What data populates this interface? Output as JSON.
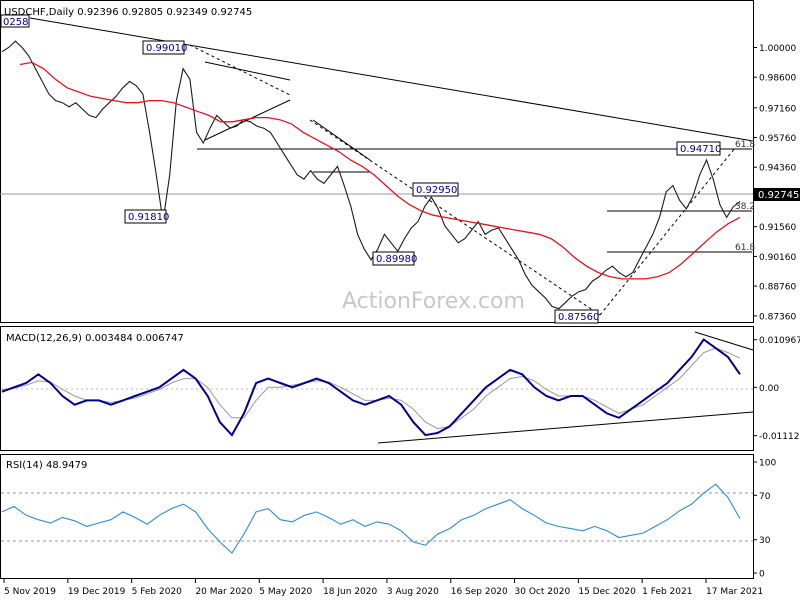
{
  "chart_data": [
    {
      "type": "line",
      "panel": "price",
      "header": "USDCHF,Daily  0.92396 0.92805 0.92349 0.92745",
      "symbol": "USDCHF",
      "timeframe": "Daily",
      "ohlc": {
        "open": 0.92396,
        "high": 0.92805,
        "low": 0.92349,
        "close": 0.92745
      },
      "ylim": [
        0.8726,
        1.0186
      ],
      "y_ticks": [
        "1.00000",
        "0.98600",
        "0.97160",
        "0.95760",
        "0.94360",
        "0.92960",
        "0.91560",
        "0.90160",
        "0.88760",
        "0.87360"
      ],
      "y_tick_values": [
        1.0,
        0.986,
        0.9716,
        0.9576,
        0.9436,
        0.9296,
        0.9156,
        0.9016,
        0.8876,
        0.8736
      ],
      "current_price_label": "0.92745",
      "watermark": "ActionForex.com",
      "series": [
        {
          "name": "close",
          "role": "price",
          "color": "#1a1a1a",
          "values": [
            0.998,
            1.0,
            1.003,
            1.0,
            0.996,
            0.99,
            0.984,
            0.978,
            0.975,
            0.974,
            0.972,
            0.974,
            0.971,
            0.968,
            0.967,
            0.971,
            0.974,
            0.977,
            0.981,
            0.984,
            0.982,
            0.978,
            0.96,
            0.94,
            0.9181,
            0.94,
            0.975,
            0.99,
            0.985,
            0.96,
            0.955,
            0.962,
            0.968,
            0.965,
            0.962,
            0.963,
            0.966,
            0.965,
            0.963,
            0.962,
            0.96,
            0.955,
            0.95,
            0.945,
            0.94,
            0.938,
            0.942,
            0.938,
            0.936,
            0.94,
            0.944,
            0.935,
            0.925,
            0.912,
            0.905,
            0.9,
            0.905,
            0.912,
            0.908,
            0.904,
            0.91,
            0.915,
            0.918,
            0.925,
            0.9295,
            0.924,
            0.916,
            0.912,
            0.908,
            0.91,
            0.914,
            0.918,
            0.912,
            0.914,
            0.915,
            0.91,
            0.905,
            0.9,
            0.893,
            0.888,
            0.885,
            0.882,
            0.878,
            0.877,
            0.88,
            0.883,
            0.885,
            0.886,
            0.89,
            0.892,
            0.895,
            0.897,
            0.894,
            0.892,
            0.894,
            0.9,
            0.906,
            0.912,
            0.92,
            0.932,
            0.935,
            0.928,
            0.924,
            0.93,
            0.94,
            0.947,
            0.938,
            0.926,
            0.92,
            0.925,
            0.9275
          ]
        },
        {
          "name": "SMA",
          "role": "moving-average",
          "color": "#e0141e",
          "values": [
            0.992,
            0.993,
            0.99,
            0.985,
            0.981,
            0.979,
            0.977,
            0.976,
            0.975,
            0.974,
            0.974,
            0.975,
            0.975,
            0.974,
            0.972,
            0.97,
            0.968,
            0.965,
            0.965,
            0.966,
            0.967,
            0.967,
            0.966,
            0.964,
            0.96,
            0.957,
            0.954,
            0.951,
            0.947,
            0.944,
            0.94,
            0.935,
            0.93,
            0.926,
            0.923,
            0.921,
            0.92,
            0.919,
            0.918,
            0.917,
            0.916,
            0.915,
            0.914,
            0.913,
            0.912,
            0.91,
            0.906,
            0.901,
            0.897,
            0.894,
            0.892,
            0.891,
            0.891,
            0.891,
            0.892,
            0.894,
            0.898,
            0.903,
            0.908,
            0.913,
            0.917,
            0.92
          ]
        }
      ],
      "annotations": [
        {
          "label": "0.99010"
        },
        {
          "label": "0.91810"
        },
        {
          "label": "0.89980"
        },
        {
          "label": "0.92950"
        },
        {
          "label": "0.87560"
        },
        {
          "label": "0.94710"
        },
        {
          "label": "61.8"
        },
        {
          "label": "38.2"
        },
        {
          "label": "61.8"
        },
        {
          "label": "0258"
        }
      ],
      "level_lines": [
        0.9471,
        0.9181,
        0.9295,
        0.9015
      ]
    },
    {
      "type": "line",
      "panel": "macd",
      "header": "MACD(12,26,9) 0.003484 0.006747",
      "ylim": [
        -0.0135,
        0.0125
      ],
      "y_ticks": [
        "0.010967",
        "0.00",
        "-0.011127"
      ],
      "y_tick_values": [
        0.010967,
        0.0,
        -0.011127
      ],
      "series": [
        {
          "name": "MACD",
          "color": "#00008b",
          "values": [
            -0.001,
            0.0,
            0.001,
            0.003,
            0.001,
            -0.002,
            -0.004,
            -0.003,
            -0.003,
            -0.004,
            -0.003,
            -0.002,
            -0.001,
            0.0,
            0.002,
            0.004,
            0.002,
            -0.002,
            -0.008,
            -0.011,
            -0.006,
            0.001,
            0.002,
            0.001,
            0.0,
            0.001,
            0.002,
            0.001,
            -0.001,
            -0.003,
            -0.004,
            -0.003,
            -0.002,
            -0.004,
            -0.008,
            -0.011,
            -0.0105,
            -0.009,
            -0.006,
            -0.003,
            0.0,
            0.002,
            0.004,
            0.003,
            0.0,
            -0.002,
            -0.003,
            -0.002,
            -0.002,
            -0.004,
            -0.006,
            -0.007,
            -0.005,
            -0.003,
            -0.001,
            0.001,
            0.004,
            0.007,
            0.011,
            0.009,
            0.007,
            0.003
          ]
        },
        {
          "name": "Signal",
          "color": "#999999",
          "values": [
            -0.0005,
            -0.0002,
            0.0005,
            0.0015,
            0.0012,
            -0.0005,
            -0.002,
            -0.003,
            -0.003,
            -0.0035,
            -0.003,
            -0.0025,
            -0.0015,
            -0.0005,
            0.001,
            0.002,
            0.002,
            0.0,
            -0.004,
            -0.007,
            -0.007,
            -0.003,
            0.0,
            0.0,
            0.0005,
            0.001,
            0.0015,
            0.0012,
            0.0,
            -0.0015,
            -0.003,
            -0.003,
            -0.0025,
            -0.003,
            -0.005,
            -0.008,
            -0.0095,
            -0.009,
            -0.007,
            -0.005,
            -0.002,
            0.0,
            0.002,
            0.0025,
            0.0015,
            -0.0005,
            -0.002,
            -0.002,
            -0.002,
            -0.003,
            -0.0045,
            -0.006,
            -0.005,
            -0.004,
            -0.002,
            0.0,
            0.002,
            0.005,
            0.008,
            0.009,
            0.008,
            0.0067
          ]
        }
      ]
    },
    {
      "type": "line",
      "panel": "rsi",
      "header": "RSI(14) 48.9479",
      "ylim": [
        0,
        100
      ],
      "y_ticks": [
        "100",
        "70",
        "30",
        "0"
      ],
      "y_tick_values": [
        100,
        70,
        30,
        0
      ],
      "series": [
        {
          "name": "RSI",
          "color": "#2a8fd0",
          "values": [
            55,
            60,
            52,
            48,
            45,
            50,
            47,
            42,
            45,
            48,
            55,
            50,
            44,
            52,
            58,
            62,
            55,
            40,
            28,
            18,
            35,
            55,
            58,
            48,
            46,
            52,
            55,
            50,
            44,
            48,
            42,
            46,
            44,
            38,
            28,
            25,
            35,
            40,
            48,
            52,
            58,
            62,
            66,
            58,
            52,
            45,
            42,
            40,
            38,
            42,
            38,
            32,
            34,
            36,
            42,
            48,
            56,
            62,
            72,
            80,
            68,
            49
          ]
        }
      ]
    }
  ],
  "x_axis_labels": [
    "5 Nov 2019",
    "19 Dec 2019",
    "5 Feb 2020",
    "20 Mar 2020",
    "5 May 2020",
    "18 Jun 2020",
    "3 Aug 2020",
    "16 Sep 2020",
    "30 Oct 2020",
    "15 Dec 2020",
    "1 Feb 2021",
    "17 Mar 2021"
  ]
}
